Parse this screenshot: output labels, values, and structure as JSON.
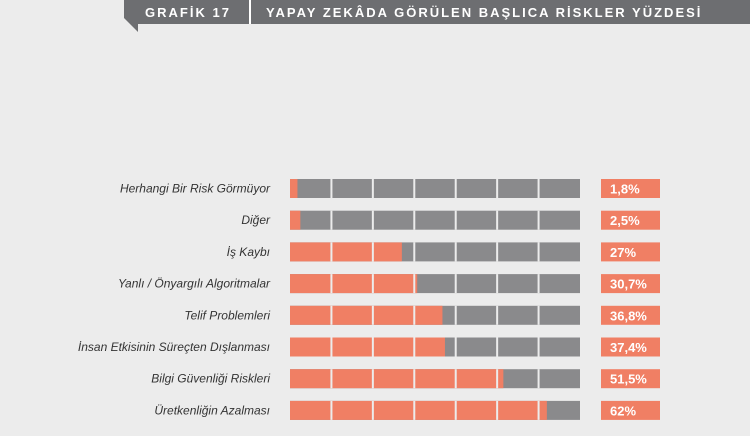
{
  "header": {
    "tab": "GRAFİK 17",
    "title": "YAPAY ZEKÂDA GÖRÜLEN BAŞLICA RİSKLER YÜZDESİ"
  },
  "colors": {
    "accent": "#f07f64",
    "track": "#8a8a8c",
    "header": "#6d6e71",
    "background": "#ececec"
  },
  "chart_data": {
    "type": "bar",
    "orientation": "horizontal",
    "title": "YAPAY ZEKÂDA GÖRÜLEN BAŞLICA RİSKLER YÜZDESİ",
    "categories": [
      "Herhangi Bir Risk Görmüyor",
      "Diğer",
      "İş Kaybı",
      "Yanlı / Önyargılı Algoritmalar",
      "Telif Problemleri",
      "İnsan Etkisinin Süreçten Dışlanması",
      "Bilgi Güvenliği Riskleri",
      "Üretkenliğin Azalması"
    ],
    "values": [
      1.8,
      2.5,
      27,
      30.7,
      36.8,
      37.4,
      51.5,
      62
    ],
    "value_labels": [
      "1,8%",
      "2,5%",
      "27%",
      "30,7%",
      "36,8%",
      "37,4%",
      "51,5%",
      "62%"
    ],
    "xlim": [
      0,
      70
    ],
    "grid": true
  }
}
